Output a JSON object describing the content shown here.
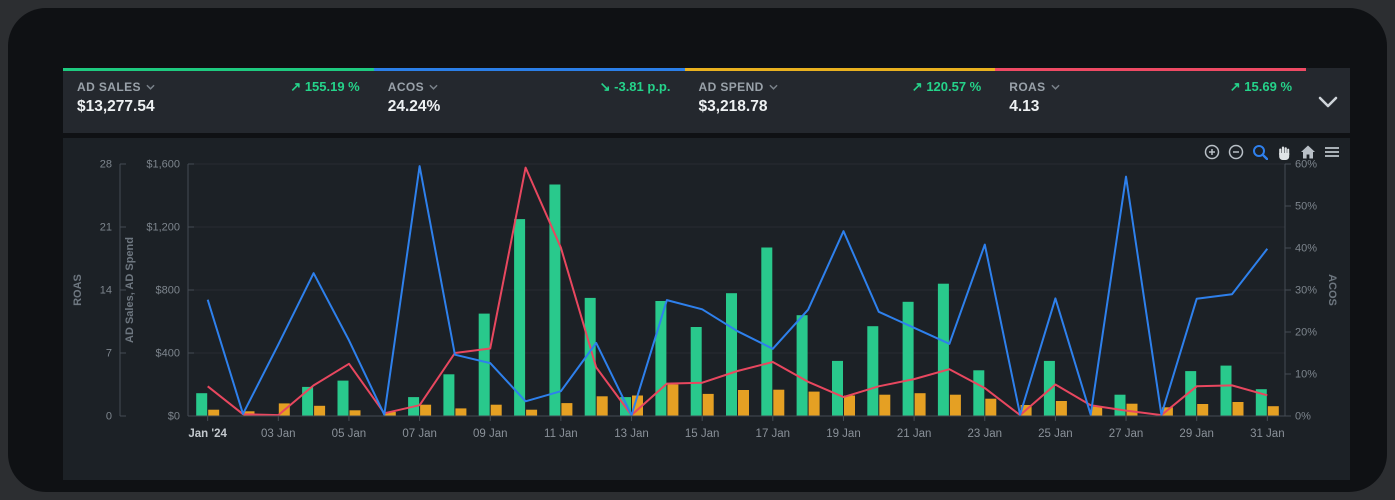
{
  "kpis": [
    {
      "label": "AD SALES",
      "value": "$13,277.54",
      "arrow": "↗",
      "change": "155.19 %",
      "direction": "up",
      "accent": "#1ecb80"
    },
    {
      "label": "ACOS",
      "value": "24.24%",
      "arrow": "↘",
      "change": "-3.81 p.p.",
      "direction": "down",
      "accent": "#2b7fe8"
    },
    {
      "label": "AD SPEND",
      "value": "$3,218.78",
      "arrow": "↗",
      "change": "120.57 %",
      "direction": "up",
      "accent": "#e9b11f"
    },
    {
      "label": "ROAS",
      "value": "4.13",
      "arrow": "↗",
      "change": "15.69 %",
      "direction": "up",
      "accent": "#ef4a64"
    }
  ],
  "change_color": "#25d38a",
  "toolbar_icons": [
    "zoom-in-icon",
    "zoom-out-icon",
    "zoom-selection-icon",
    "pan-icon",
    "home-icon",
    "menu-icon"
  ],
  "kpi_dropdown_icon": "chevron-down-icon",
  "expand_icon": "chevron-down-icon",
  "chart_data": {
    "type": "bar+line combo",
    "x_tick_labels": [
      "Jan '24",
      "03 Jan",
      "05 Jan",
      "07 Jan",
      "09 Jan",
      "11 Jan",
      "13 Jan",
      "15 Jan",
      "17 Jan",
      "19 Jan",
      "21 Jan",
      "23 Jan",
      "25 Jan",
      "27 Jan",
      "29 Jan",
      "31 Jan"
    ],
    "days": 31,
    "series": [
      {
        "name": "AD Sales",
        "type": "bar",
        "axis": "currency",
        "color": "#29c98c",
        "values": [
          145,
          0,
          0,
          185,
          225,
          0,
          120,
          265,
          650,
          1250,
          1470,
          750,
          120,
          730,
          565,
          780,
          1070,
          640,
          350,
          570,
          725,
          840,
          290,
          0,
          350,
          0,
          135,
          0,
          285,
          320,
          170
        ]
      },
      {
        "name": "AD Spend",
        "type": "bar",
        "axis": "currency",
        "color": "#e5a023",
        "values": [
          40,
          30,
          80,
          65,
          36,
          26,
          72,
          48,
          72,
          40,
          82,
          125,
          130,
          200,
          140,
          165,
          167,
          155,
          130,
          135,
          145,
          135,
          110,
          70,
          95,
          60,
          78,
          55,
          76,
          89,
          62
        ]
      },
      {
        "name": "ROAS",
        "type": "line",
        "axis": "roas",
        "color": "#e8475f",
        "values": [
          3.3,
          0.2,
          0.1,
          3.4,
          5.8,
          0.3,
          1.2,
          7.0,
          7.5,
          27.6,
          18.7,
          5.4,
          0.1,
          3.6,
          3.7,
          5.0,
          6.0,
          3.8,
          2.1,
          3.3,
          4.1,
          5.2,
          3.1,
          0.1,
          3.5,
          1.2,
          0.6,
          0.1,
          3.3,
          3.4,
          2.3
        ]
      },
      {
        "name": "ACOS",
        "type": "line",
        "axis": "percent",
        "color": "#2e80ec",
        "values": [
          27.7,
          0.5,
          17.0,
          34.0,
          18.0,
          0.3,
          59.5,
          14.6,
          12.6,
          3.5,
          5.9,
          17.4,
          0.2,
          27.6,
          25.4,
          20.2,
          16.0,
          25.3,
          44.0,
          24.8,
          21.0,
          17.2,
          40.8,
          0.3,
          28.0,
          0.3,
          57.0,
          0.3,
          27.9,
          29.0,
          39.8
        ]
      }
    ],
    "axes": {
      "roas": {
        "label": "ROAS",
        "ticks": [
          "0",
          "7",
          "14",
          "21",
          "28"
        ],
        "min": 0,
        "max": 28,
        "side": "left"
      },
      "currency": {
        "label": "AD Sales, AD Spend",
        "ticks": [
          "$0",
          "$400",
          "$800",
          "$1,200",
          "$1,600"
        ],
        "min": 0,
        "max": 1600,
        "side": "left"
      },
      "percent": {
        "label": "ACOS",
        "ticks": [
          "0%",
          "10%",
          "20%",
          "30%",
          "40%",
          "50%",
          "60%"
        ],
        "min": 0,
        "max": 60,
        "side": "right"
      }
    },
    "grid": "faint horizontal",
    "legend": "none"
  }
}
